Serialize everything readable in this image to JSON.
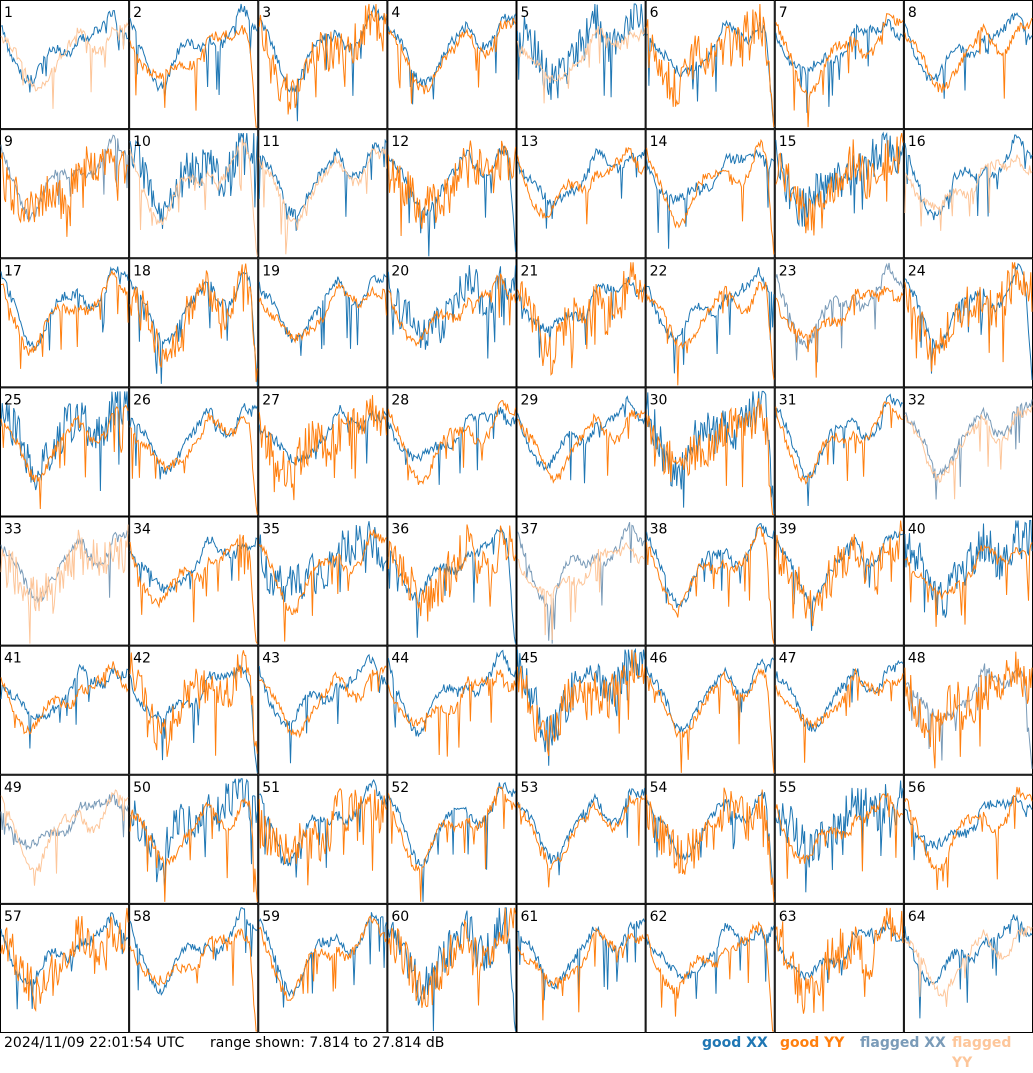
{
  "chart_data": {
    "type": "line",
    "panel_count": 64,
    "grid": "8x8",
    "y_range_db": [
      7.814,
      27.814
    ],
    "colors": {
      "good_xx": "#1f77b4",
      "good_yy": "#ff7f0e",
      "flagged_xx": "#7a9bb8",
      "flagged_yy": "#fdc69a"
    },
    "panels": [
      {
        "id": "1",
        "xx": "good",
        "yy": "flagged"
      },
      {
        "id": "2",
        "xx": "good",
        "yy": "good"
      },
      {
        "id": "3",
        "xx": "good",
        "yy": "good"
      },
      {
        "id": "4",
        "xx": "good",
        "yy": "good"
      },
      {
        "id": "5",
        "xx": "good",
        "yy": "flagged"
      },
      {
        "id": "6",
        "xx": "good",
        "yy": "good"
      },
      {
        "id": "7",
        "xx": "good",
        "yy": "good"
      },
      {
        "id": "8",
        "xx": "good",
        "yy": "good"
      },
      {
        "id": "9",
        "xx": "flagged",
        "yy": "good"
      },
      {
        "id": "10",
        "xx": "good",
        "yy": "flagged"
      },
      {
        "id": "11",
        "xx": "good",
        "yy": "flagged"
      },
      {
        "id": "12",
        "xx": "good",
        "yy": "good"
      },
      {
        "id": "13",
        "xx": "good",
        "yy": "good"
      },
      {
        "id": "14",
        "xx": "good",
        "yy": "good"
      },
      {
        "id": "15",
        "xx": "good",
        "yy": "good"
      },
      {
        "id": "16",
        "xx": "good",
        "yy": "flagged"
      },
      {
        "id": "17",
        "xx": "good",
        "yy": "good"
      },
      {
        "id": "18",
        "xx": "good",
        "yy": "good"
      },
      {
        "id": "19",
        "xx": "good",
        "yy": "good"
      },
      {
        "id": "20",
        "xx": "good",
        "yy": "good"
      },
      {
        "id": "21",
        "xx": "good",
        "yy": "good"
      },
      {
        "id": "22",
        "xx": "good",
        "yy": "good"
      },
      {
        "id": "23",
        "xx": "flagged",
        "yy": "good"
      },
      {
        "id": "24",
        "xx": "good",
        "yy": "good"
      },
      {
        "id": "25",
        "xx": "good",
        "yy": "good"
      },
      {
        "id": "26",
        "xx": "good",
        "yy": "good"
      },
      {
        "id": "27",
        "xx": "good",
        "yy": "good"
      },
      {
        "id": "28",
        "xx": "good",
        "yy": "good"
      },
      {
        "id": "29",
        "xx": "good",
        "yy": "good"
      },
      {
        "id": "30",
        "xx": "good",
        "yy": "good"
      },
      {
        "id": "31",
        "xx": "good",
        "yy": "good"
      },
      {
        "id": "32",
        "xx": "flagged",
        "yy": "flagged"
      },
      {
        "id": "33",
        "xx": "flagged",
        "yy": "flagged"
      },
      {
        "id": "34",
        "xx": "good",
        "yy": "good"
      },
      {
        "id": "35",
        "xx": "good",
        "yy": "good"
      },
      {
        "id": "36",
        "xx": "good",
        "yy": "good"
      },
      {
        "id": "37",
        "xx": "flagged",
        "yy": "flagged"
      },
      {
        "id": "38",
        "xx": "good",
        "yy": "good"
      },
      {
        "id": "39",
        "xx": "good",
        "yy": "good"
      },
      {
        "id": "40",
        "xx": "good",
        "yy": "good"
      },
      {
        "id": "41",
        "xx": "good",
        "yy": "good"
      },
      {
        "id": "42",
        "xx": "good",
        "yy": "good"
      },
      {
        "id": "43",
        "xx": "good",
        "yy": "good"
      },
      {
        "id": "44",
        "xx": "good",
        "yy": "good"
      },
      {
        "id": "45",
        "xx": "good",
        "yy": "good"
      },
      {
        "id": "46",
        "xx": "good",
        "yy": "good"
      },
      {
        "id": "47",
        "xx": "good",
        "yy": "good"
      },
      {
        "id": "48",
        "xx": "flagged",
        "yy": "good"
      },
      {
        "id": "49",
        "xx": "flagged",
        "yy": "flagged"
      },
      {
        "id": "50",
        "xx": "good",
        "yy": "good"
      },
      {
        "id": "51",
        "xx": "good",
        "yy": "good"
      },
      {
        "id": "52",
        "xx": "good",
        "yy": "good"
      },
      {
        "id": "53",
        "xx": "good",
        "yy": "good"
      },
      {
        "id": "54",
        "xx": "good",
        "yy": "good"
      },
      {
        "id": "55",
        "xx": "good",
        "yy": "good"
      },
      {
        "id": "56",
        "xx": "good",
        "yy": "good"
      },
      {
        "id": "57",
        "xx": "good",
        "yy": "good"
      },
      {
        "id": "58",
        "xx": "good",
        "yy": "good"
      },
      {
        "id": "59",
        "xx": "good",
        "yy": "good"
      },
      {
        "id": "60",
        "xx": "good",
        "yy": "good"
      },
      {
        "id": "61",
        "xx": "good",
        "yy": "good"
      },
      {
        "id": "62",
        "xx": "good",
        "yy": "good"
      },
      {
        "id": "63",
        "xx": "good",
        "yy": "good"
      },
      {
        "id": "64",
        "xx": "good",
        "yy": "flagged"
      }
    ]
  },
  "footer": {
    "timestamp": "2024/11/09 22:01:54 UTC",
    "range_text": "range shown: 7.814 to 27.814 dB",
    "legend": {
      "good_label": "good",
      "flagged_label": "flagged",
      "xx": "XX",
      "yy": "YY"
    }
  }
}
